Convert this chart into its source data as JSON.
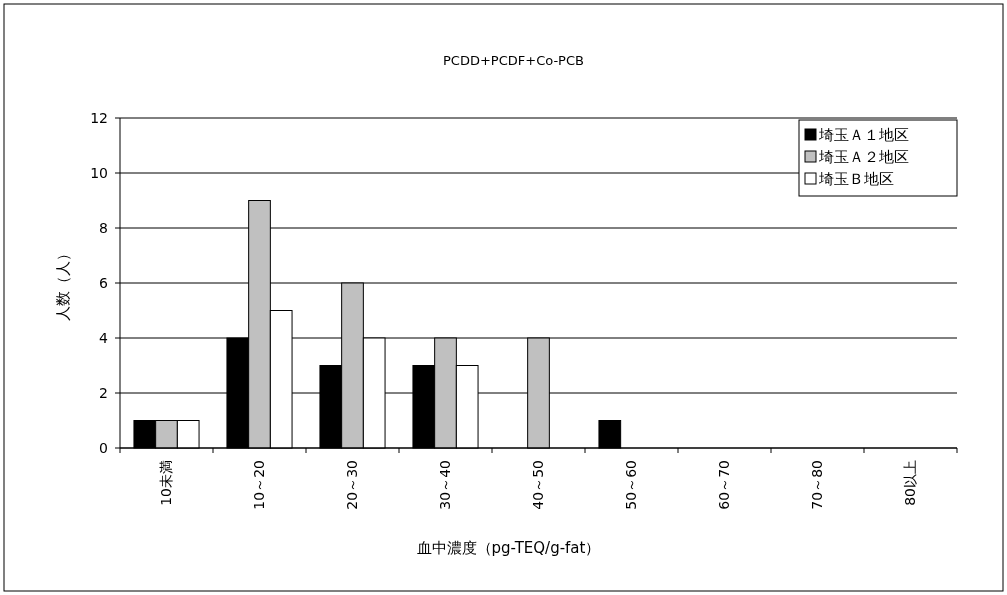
{
  "chart_data": {
    "type": "bar",
    "title": "PCDD+PCDF+Co-PCB",
    "xlabel": "血中濃度（pg-TEQ/g-fat）",
    "ylabel": "人数（人）",
    "categories": [
      "10未満",
      "10～20",
      "20～30",
      "30～40",
      "40～50",
      "50～60",
      "60～70",
      "70～80",
      "80以上"
    ],
    "series": [
      {
        "name": "埼玉Ａ１地区",
        "color": "#000000",
        "values": [
          1,
          4,
          3,
          3,
          0,
          1,
          0,
          0,
          0
        ]
      },
      {
        "name": "埼玉Ａ２地区",
        "color": "#c0c0c0",
        "values": [
          1,
          9,
          6,
          4,
          4,
          0,
          0,
          0,
          0
        ]
      },
      {
        "name": "埼玉Ｂ地区",
        "color": "#ffffff",
        "values": [
          1,
          5,
          4,
          3,
          0,
          0,
          0,
          0,
          0
        ]
      }
    ],
    "ylim": [
      0,
      12
    ],
    "yticks": [
      0,
      2,
      4,
      6,
      8,
      10,
      12
    ],
    "grid": "y",
    "legend": "top right"
  }
}
